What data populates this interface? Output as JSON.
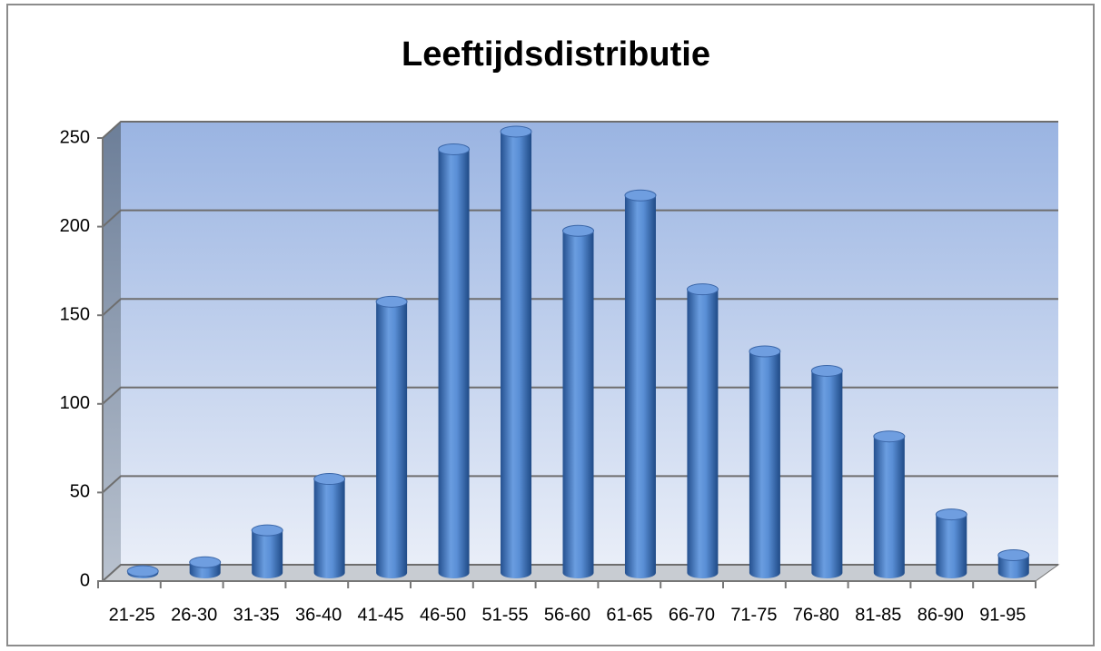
{
  "chart_data": {
    "type": "bar",
    "title": "Leeftijdsdistributie",
    "categories": [
      "21-25",
      "26-30",
      "31-35",
      "36-40",
      "41-45",
      "46-50",
      "51-55",
      "56-60",
      "61-65",
      "66-70",
      "71-75",
      "76-80",
      "81-85",
      "86-90",
      "91-95"
    ],
    "values": [
      1,
      6,
      24,
      53,
      153,
      239,
      249,
      193,
      213,
      160,
      125,
      114,
      77,
      33,
      10
    ],
    "color": "#4f81bd",
    "ylim": [
      0,
      250
    ],
    "yticks": [
      0,
      50,
      100,
      150,
      200,
      250
    ],
    "grid": true
  }
}
